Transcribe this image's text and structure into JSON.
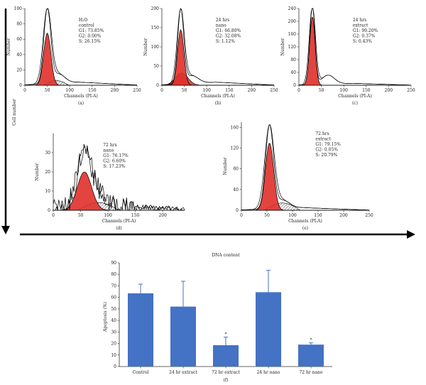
{
  "side_axis": {
    "label": "Cell number"
  },
  "chart_data": [
    {
      "type": "histogram",
      "panel": "(a)",
      "xlabel": "Channels (PI-A)",
      "ylabel": "Number",
      "xlim": [
        0,
        250
      ],
      "ylim": [
        0,
        100
      ],
      "xticks": [
        0,
        50,
        100,
        150,
        200,
        250
      ],
      "yticks": [
        0,
        20,
        40,
        60,
        80,
        100
      ],
      "annotation": [
        "H₂O",
        "control",
        "G1: 73.85%",
        "G2: 0.00%",
        "S: 26.15%"
      ],
      "g1": {
        "mean": 50,
        "sd": 8,
        "height": 68
      },
      "s_phase": {
        "from": 42,
        "to": 98,
        "height": 6
      },
      "raw": {
        "height": 97,
        "shoulder": 12,
        "tail": 4
      }
    },
    {
      "type": "histogram",
      "panel": "(b)",
      "xlabel": "Channels (PI-A)",
      "ylabel": "Number",
      "xlim": [
        0,
        250
      ],
      "ylim": [
        0,
        200
      ],
      "xticks": [
        0,
        50,
        100,
        150,
        200,
        250
      ],
      "yticks": [
        0,
        50,
        100,
        150,
        200
      ],
      "annotation": [
        "24 hrs",
        "nano",
        "G1: 66.80%",
        "G2: 32.08%",
        "S: 1.12%"
      ],
      "g1": {
        "mean": 42,
        "sd": 7,
        "height": 145
      },
      "g2": {
        "mean": 44,
        "sd": 14,
        "height": 32
      },
      "raw": {
        "height": 193,
        "shoulder": 20,
        "tail": 8
      }
    },
    {
      "type": "histogram",
      "panel": "(c)",
      "xlabel": "Channels (PI-A)",
      "ylabel": "Number",
      "xlim": [
        0,
        250
      ],
      "ylim": [
        0,
        240
      ],
      "xticks": [
        0,
        50,
        100,
        150,
        200,
        250
      ],
      "yticks": [
        0,
        40,
        80,
        120,
        160,
        200,
        240
      ],
      "annotation": [
        "24 hrs",
        "extract",
        "G1: 99.20%",
        "G2: 0.37%",
        "S: 0.43%"
      ],
      "g1": {
        "mean": 30,
        "sd": 6,
        "height": 215
      },
      "raw": {
        "height": 245,
        "shoulder": 28,
        "shoulder_mean": 65,
        "tail": 6
      }
    },
    {
      "type": "histogram",
      "panel": "(d)",
      "xlabel": "Channels (PI-A)",
      "ylabel": "Number",
      "xlim": [
        0,
        240
      ],
      "ylim": [
        0,
        40
      ],
      "xticks": [
        0,
        50,
        100,
        150,
        200
      ],
      "yticks": [
        0,
        10,
        20,
        30
      ],
      "annotation": [
        "72 hrs",
        "nano",
        "G1: 76.17%",
        "G2: 6.60%",
        "S: 17.23%"
      ],
      "g1": {
        "mean": 57,
        "sd": 13,
        "height": 20
      },
      "s_phase": {
        "from": 45,
        "to": 120,
        "height": 4
      },
      "raw": {
        "height": 30,
        "shoulder": 5,
        "tail": 2,
        "noisy": true
      }
    },
    {
      "type": "histogram",
      "panel": "(e)",
      "xlabel": "Channels (PI-A)",
      "ylabel": "Number",
      "xlim": [
        0,
        250
      ],
      "ylim": [
        0,
        170
      ],
      "xticks": [
        0,
        50,
        100,
        150,
        200,
        250
      ],
      "yticks": [
        0,
        40,
        80,
        120,
        160
      ],
      "annotation": [
        "72 hrs",
        "extract",
        "G1: 79.15%",
        "G2: 0.05%",
        "S: 20.79%"
      ],
      "g1": {
        "mean": 55,
        "sd": 8,
        "height": 130
      },
      "s_phase": {
        "from": 45,
        "to": 115,
        "height": 14
      },
      "raw": {
        "height": 160,
        "shoulder": 16,
        "tail": 5
      }
    },
    {
      "type": "bar",
      "panel": "(f)",
      "title": "DNA content",
      "ylabel": "Apoptosis (%)",
      "ylim": [
        0,
        90
      ],
      "yticks": [
        0,
        10,
        20,
        30,
        40,
        50,
        60,
        70,
        80,
        90
      ],
      "categories": [
        "Control",
        "24 hr extract",
        "72 hr extract",
        "24 hr nano",
        "72 hr nano"
      ],
      "values": [
        63.5,
        52,
        18.5,
        64.5,
        19
      ],
      "errors": [
        8,
        22,
        7,
        19,
        1.5
      ],
      "significance": [
        "",
        "",
        "*",
        "",
        "*"
      ],
      "color": "#4472c4"
    }
  ]
}
